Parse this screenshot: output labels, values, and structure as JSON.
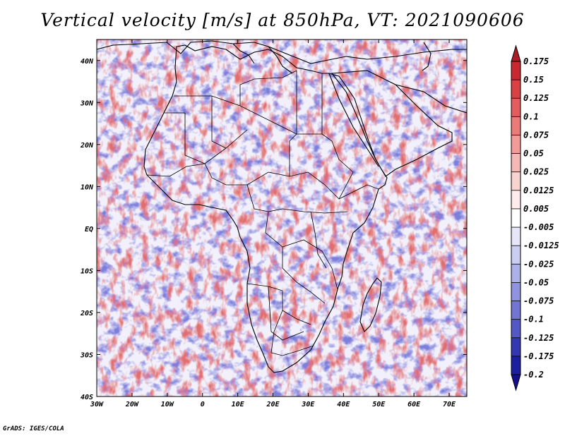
{
  "title": "Vertical velocity [m/s] at 850hPa, VT: 2021090606",
  "footer": "GrADS: IGES/COLA",
  "map": {
    "lon_range": [
      -30,
      75
    ],
    "lat_range": [
      -40,
      45
    ],
    "lon_ticks": [
      "30W",
      "20W",
      "10W",
      "0",
      "10E",
      "20E",
      "30E",
      "40E",
      "50E",
      "60E",
      "70E"
    ],
    "lat_ticks": [
      "40N",
      "30N",
      "20N",
      "10N",
      "EQ",
      "10S",
      "20S",
      "30S",
      "40S"
    ]
  },
  "colorbar": {
    "labels": [
      "0.175",
      "0.15",
      "0.125",
      "0.1",
      "0.075",
      "0.05",
      "0.025",
      "0.0125",
      "0.005",
      "-0.005",
      "-0.0125",
      "-0.025",
      "-0.05",
      "-0.075",
      "-0.1",
      "-0.125",
      "-0.175",
      "-0.2"
    ],
    "colors": [
      "#b01a22",
      "#c8282f",
      "#d94145",
      "#e35d5e",
      "#ec7a79",
      "#f29b98",
      "#f6b8b4",
      "#f9d3cf",
      "#fdeceb",
      "#ffffff",
      "#e6e6f8",
      "#cccdf2",
      "#aeb0ea",
      "#9093e0",
      "#7275d4",
      "#5458c6",
      "#3337b4",
      "#1c1fa0",
      "#10108a"
    ],
    "top_color": "#aa1d24",
    "bottom_color": "#140f8e"
  }
}
